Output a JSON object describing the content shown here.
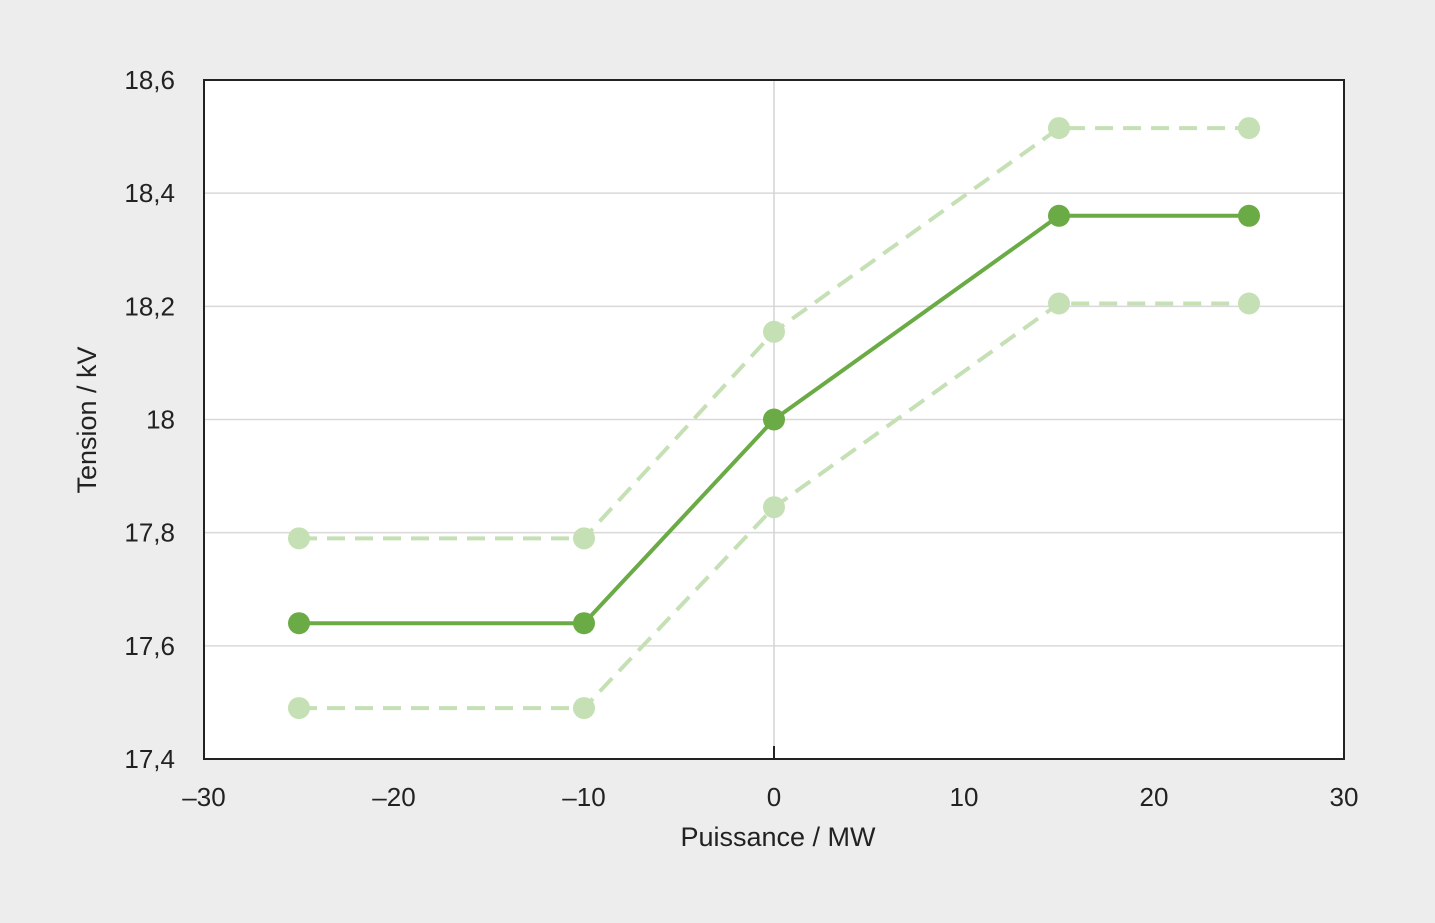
{
  "chart_data": {
    "type": "line",
    "xlabel": "Puissance / MW",
    "ylabel": "Tension / kV",
    "xlim": [
      -30,
      30
    ],
    "ylim": [
      17.4,
      18.6
    ],
    "x_ticks": [
      -30,
      -20,
      -10,
      0,
      10,
      20,
      30
    ],
    "x_tick_labels": [
      "–30",
      "–20",
      "–10",
      "0",
      "10",
      "20",
      "30"
    ],
    "y_ticks": [
      17.4,
      17.6,
      17.8,
      18,
      18.2,
      18.4,
      18.6
    ],
    "y_tick_labels": [
      "17,4",
      "17,6",
      "17,8",
      "18",
      "18,2",
      "18,4",
      "18,6"
    ],
    "grid": "horizontal",
    "series": [
      {
        "style": "dashed-light",
        "color": "#c5e0b4",
        "x": [
          -25,
          -10,
          0,
          15,
          25
        ],
        "y": [
          17.79,
          17.79,
          18.155,
          18.515,
          18.515
        ]
      },
      {
        "style": "solid",
        "color": "#6aab45",
        "x": [
          -25,
          -10,
          0,
          15,
          25
        ],
        "y": [
          17.64,
          17.64,
          18.0,
          18.36,
          18.36
        ]
      },
      {
        "style": "dashed-light",
        "color": "#c5e0b4",
        "x": [
          -25,
          -10,
          0,
          15,
          25
        ],
        "y": [
          17.49,
          17.49,
          17.845,
          18.205,
          18.205
        ]
      }
    ]
  }
}
